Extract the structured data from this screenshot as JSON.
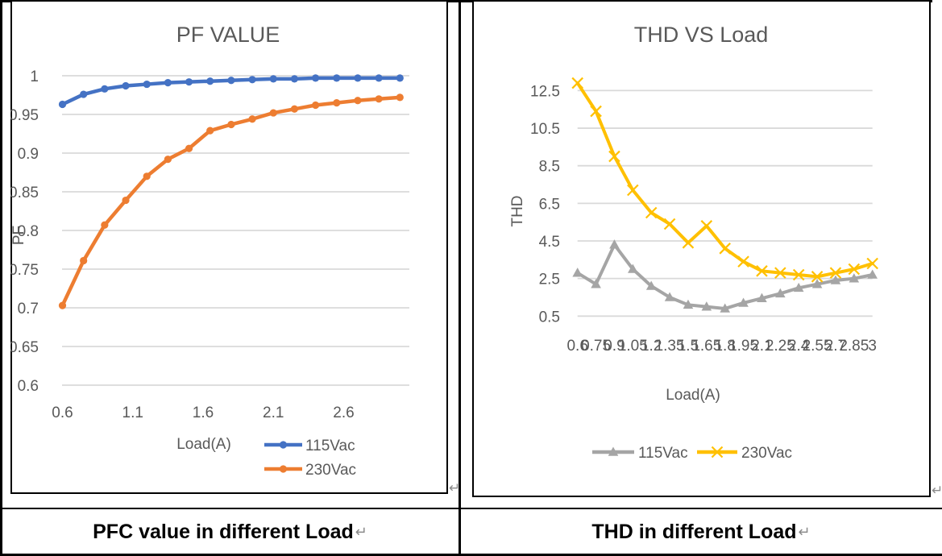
{
  "colors": {
    "blue": "#4472C4",
    "orange": "#ED7D31",
    "gray_series": "#A5A5A5",
    "yellow": "#FFC000",
    "axis_text": "#595959",
    "gridline": "#D9D9D9",
    "caption_text": "#000000",
    "return_mark": "#8a8a8a"
  },
  "left_panel": {
    "caption": "PFC value in different Load",
    "return_mark": "↵",
    "chart_return_mark": "↵"
  },
  "right_panel": {
    "caption": "THD in different Load",
    "return_mark": "↵",
    "chart_return_mark": "↵"
  },
  "chart_data": [
    {
      "type": "line",
      "title": "PF VALUE",
      "xlabel": "Load(A)",
      "ylabel": "PF",
      "x": [
        0.6,
        0.75,
        0.9,
        1.05,
        1.2,
        1.35,
        1.5,
        1.65,
        1.8,
        1.95,
        2.1,
        2.25,
        2.4,
        2.55,
        2.7,
        2.85,
        3
      ],
      "series": [
        {
          "name": "115Vac",
          "color": "#4472C4",
          "marker": "circle",
          "values": [
            0.963,
            0.976,
            0.983,
            0.987,
            0.989,
            0.991,
            0.992,
            0.993,
            0.994,
            0.995,
            0.996,
            0.996,
            0.997,
            0.997,
            0.997,
            0.997,
            0.997
          ]
        },
        {
          "name": "230Vac",
          "color": "#ED7D31",
          "marker": "circle",
          "values": [
            0.703,
            0.761,
            0.807,
            0.839,
            0.87,
            0.892,
            0.906,
            0.929,
            0.937,
            0.944,
            0.952,
            0.957,
            0.962,
            0.965,
            0.968,
            0.97,
            0.972
          ]
        }
      ],
      "ylim": [
        0.6,
        1.0
      ],
      "yticks": [
        1,
        0.95,
        0.9,
        0.85,
        0.8,
        0.75,
        0.7,
        0.65,
        0.6
      ],
      "ytick_labels": [
        "1",
        "0.95",
        "0.9",
        "0.85",
        "0.8",
        "0.75",
        "0.7",
        "0.65",
        "0.6"
      ],
      "xticks": [
        0.6,
        1.1,
        1.6,
        2.1,
        2.6
      ],
      "xtick_labels": [
        "0.6",
        "1.1",
        "1.6",
        "2.1",
        "2.6"
      ],
      "grid": true,
      "legend_position": "bottom-right-stacked"
    },
    {
      "type": "line",
      "title": "THD VS Load",
      "xlabel": "Load(A)",
      "ylabel": "THD",
      "categories": [
        "0.6",
        "0.75",
        "0.9",
        "1.05",
        "1.2",
        "1.35",
        "1.5",
        "1.65",
        "1.8",
        "1.95",
        "2.1",
        "2.25",
        "2.4",
        "2.55",
        "2.7",
        "2.85",
        "3"
      ],
      "series": [
        {
          "name": "115Vac",
          "color": "#A5A5A5",
          "marker": "triangle",
          "values": [
            2.8,
            2.2,
            4.3,
            3.0,
            2.1,
            1.5,
            1.1,
            1.0,
            0.9,
            1.2,
            1.45,
            1.7,
            2.0,
            2.2,
            2.4,
            2.5,
            2.7
          ]
        },
        {
          "name": "230Vac",
          "color": "#FFC000",
          "marker": "x",
          "values": [
            12.9,
            11.4,
            9.0,
            7.2,
            6.0,
            5.4,
            4.4,
            5.3,
            4.1,
            3.4,
            2.9,
            2.8,
            2.7,
            2.6,
            2.8,
            3.0,
            3.3
          ]
        }
      ],
      "ylim": [
        0.5,
        13.2
      ],
      "yticks": [
        12.5,
        10.5,
        8.5,
        6.5,
        4.5,
        2.5,
        0.5
      ],
      "ytick_labels": [
        "12.5",
        "10.5",
        "8.5",
        "6.5",
        "4.5",
        "2.5",
        "0.5"
      ],
      "grid": true,
      "legend_position": "bottom-center"
    }
  ]
}
